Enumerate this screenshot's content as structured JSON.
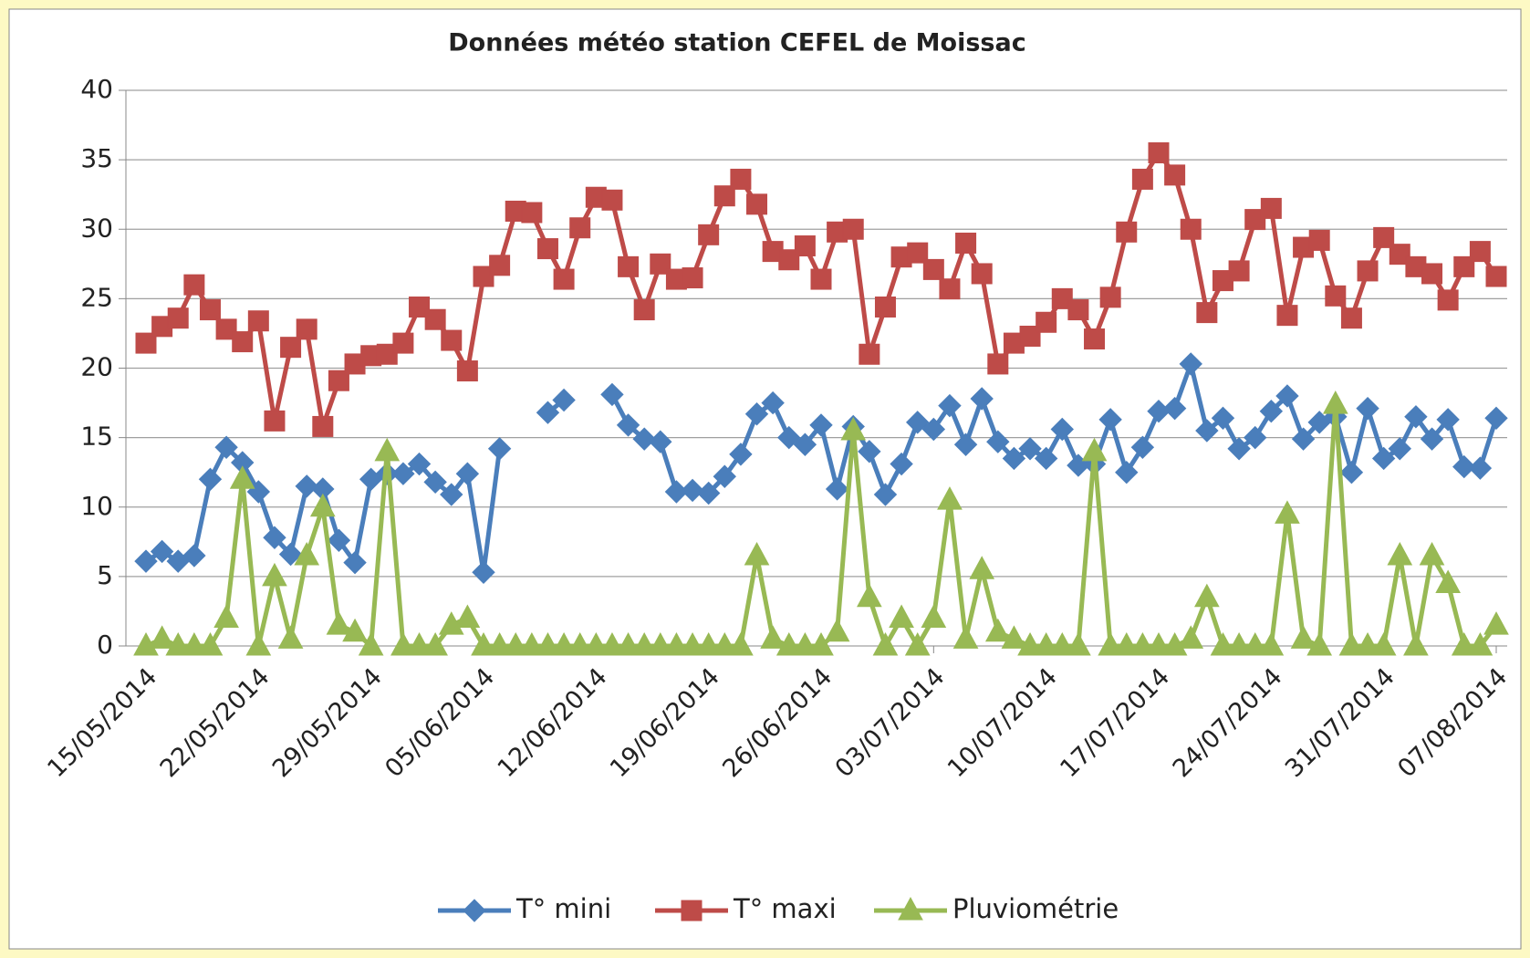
{
  "chart_data": {
    "type": "line",
    "title": "Données météo station CEFEL de Moissac",
    "categories": [
      "15/05/2014",
      null,
      null,
      null,
      null,
      null,
      null,
      "22/05/2014",
      null,
      null,
      null,
      null,
      null,
      null,
      "29/05/2014",
      null,
      null,
      null,
      null,
      null,
      null,
      "05/06/2014",
      null,
      null,
      null,
      null,
      null,
      null,
      "12/06/2014",
      null,
      null,
      null,
      null,
      null,
      null,
      "19/06/2014",
      null,
      null,
      null,
      null,
      null,
      null,
      "26/06/2014",
      null,
      null,
      null,
      null,
      null,
      null,
      "03/07/2014",
      null,
      null,
      null,
      null,
      null,
      null,
      "10/07/2014",
      null,
      null,
      null,
      null,
      null,
      null,
      "17/07/2014",
      null,
      null,
      null,
      null,
      null,
      null,
      "24/07/2014",
      null,
      null,
      null,
      null,
      null,
      null,
      "31/07/2014",
      null,
      null,
      null,
      null,
      null,
      null,
      "07/08/2014"
    ],
    "ylim": [
      0,
      40
    ],
    "yticks": [
      0,
      5,
      10,
      15,
      20,
      25,
      30,
      35,
      40
    ],
    "grid": true,
    "legend": "bottom",
    "series": [
      {
        "name": "T° mini",
        "color": "#4a7ebb",
        "marker": "diamond",
        "values": [
          6.1,
          6.8,
          6.1,
          6.5,
          12.0,
          14.3,
          13.2,
          11.1,
          7.8,
          6.6,
          11.5,
          11.3,
          7.6,
          6.0,
          12.0,
          12.4,
          12.4,
          13.1,
          11.8,
          10.9,
          12.4,
          5.3,
          14.2,
          null,
          null,
          16.8,
          17.7,
          null,
          null,
          18.1,
          15.9,
          14.9,
          14.7,
          11.1,
          11.2,
          11.0,
          12.2,
          13.8,
          16.7,
          17.5,
          15.0,
          14.5,
          15.9,
          11.3,
          15.8,
          14.0,
          10.9,
          13.1,
          16.1,
          15.6,
          17.3,
          14.5,
          17.8,
          14.7,
          13.5,
          14.2,
          13.5,
          15.6,
          13.0,
          13.1,
          16.3,
          12.5,
          14.3,
          16.9,
          17.1,
          20.3,
          15.5,
          16.4,
          14.2,
          15.0,
          16.9,
          18.0,
          14.9,
          16.1,
          16.5,
          12.5,
          17.1,
          13.5,
          14.2,
          16.5,
          14.9,
          16.3,
          12.9,
          12.8,
          16.4
        ]
      },
      {
        "name": "T° maxi",
        "color": "#be4b48",
        "marker": "square",
        "values": [
          21.8,
          23.0,
          23.6,
          26.0,
          24.2,
          22.8,
          21.9,
          23.4,
          16.2,
          21.5,
          22.8,
          15.8,
          19.1,
          20.3,
          20.9,
          21.0,
          21.8,
          24.4,
          23.5,
          22.0,
          19.8,
          26.6,
          27.4,
          31.3,
          31.2,
          28.6,
          26.4,
          30.1,
          32.3,
          32.1,
          27.3,
          24.2,
          27.5,
          26.4,
          26.5,
          29.6,
          32.4,
          33.6,
          31.8,
          28.4,
          27.8,
          28.8,
          26.4,
          29.8,
          30.0,
          21.0,
          24.4,
          28.0,
          28.3,
          27.1,
          25.7,
          29.0,
          26.8,
          20.3,
          21.8,
          22.3,
          23.3,
          25.0,
          24.2,
          22.1,
          25.1,
          29.8,
          33.6,
          35.5,
          33.9,
          30.0,
          24.0,
          26.3,
          27.0,
          30.7,
          31.5,
          23.8,
          28.7,
          29.2,
          25.2,
          23.6,
          27.0,
          29.4,
          28.2,
          27.3,
          26.8,
          24.9,
          27.3,
          28.4,
          26.6
        ]
      },
      {
        "name": "Pluviométrie",
        "color": "#98b954",
        "marker": "triangle",
        "values": [
          0,
          0.5,
          0,
          0,
          0,
          2.0,
          12.0,
          0,
          5.0,
          0.5,
          6.5,
          10.0,
          1.5,
          1.0,
          0,
          14.0,
          0,
          0,
          0,
          1.5,
          2.0,
          0,
          0,
          0,
          0,
          0,
          0,
          0,
          0,
          0,
          0,
          0,
          0,
          0,
          0,
          0,
          0,
          0,
          6.5,
          0.5,
          0,
          0,
          0,
          1.0,
          15.5,
          3.5,
          0,
          2.0,
          0,
          2.0,
          10.5,
          0.5,
          5.5,
          1.0,
          0.5,
          0,
          0,
          0,
          0,
          14.0,
          0,
          0,
          0,
          0,
          0,
          0.5,
          3.5,
          0,
          0,
          0,
          0,
          9.5,
          0.5,
          0,
          17.4,
          0,
          0,
          0,
          6.5,
          0,
          6.5,
          4.5,
          0,
          0,
          1.5
        ]
      }
    ]
  }
}
